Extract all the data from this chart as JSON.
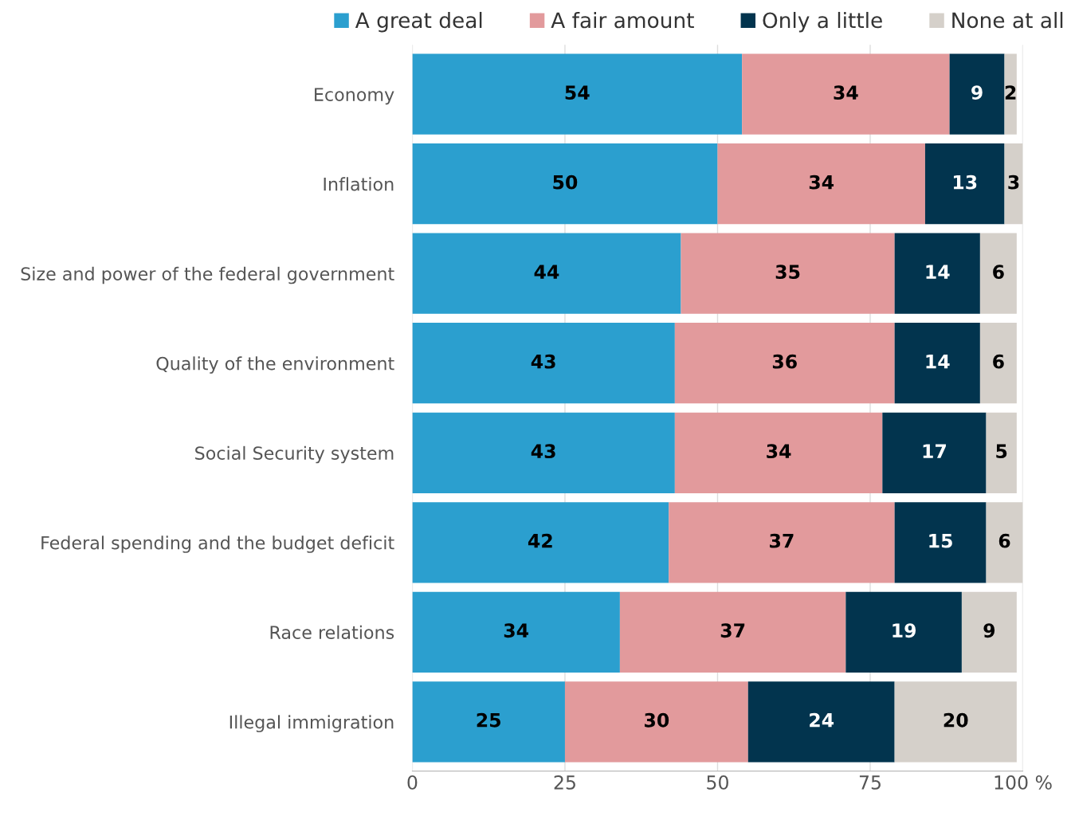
{
  "chart_data": {
    "type": "bar",
    "orientation": "horizontal",
    "stacked": true,
    "categories": [
      "Economy",
      "Inflation",
      "Size and power of the federal government",
      "Quality of the environment",
      "Social Security system",
      "Federal spending and the budget deficit",
      "Race relations",
      "Illegal immigration"
    ],
    "series": [
      {
        "name": "A great deal",
        "color": "#2b9fcf",
        "values": [
          54,
          50,
          44,
          43,
          43,
          42,
          34,
          25
        ]
      },
      {
        "name": "A fair amount",
        "color": "#e29a9c",
        "values": [
          34,
          34,
          35,
          36,
          34,
          37,
          37,
          30
        ]
      },
      {
        "name": "Only a little",
        "color": "#02344e",
        "values": [
          9,
          13,
          14,
          14,
          17,
          15,
          19,
          24
        ]
      },
      {
        "name": "None at all",
        "color": "#d5d0ca",
        "values": [
          2,
          3,
          6,
          6,
          5,
          6,
          9,
          20
        ]
      }
    ],
    "xlim": [
      0,
      100
    ],
    "xticks": [
      0,
      25,
      50,
      75,
      {
        "value": 100,
        "label": "100 %"
      }
    ],
    "grid": "x",
    "legend": "top",
    "data_labels": true
  }
}
